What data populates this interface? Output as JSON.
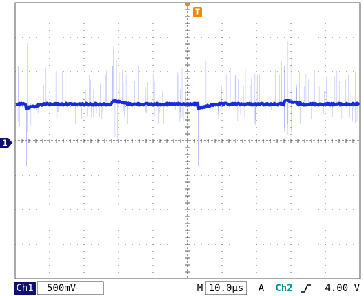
{
  "screen": {
    "trigger_marker": "T",
    "channel_marker": "1"
  },
  "status_bar": {
    "channel": "Ch1",
    "volts_per_div": "500mV",
    "timebase_label": "M",
    "time_per_div": "10.0µs",
    "trigger_mode": "A",
    "trigger_source": "Ch2",
    "trigger_level": "4.00 V"
  }
}
